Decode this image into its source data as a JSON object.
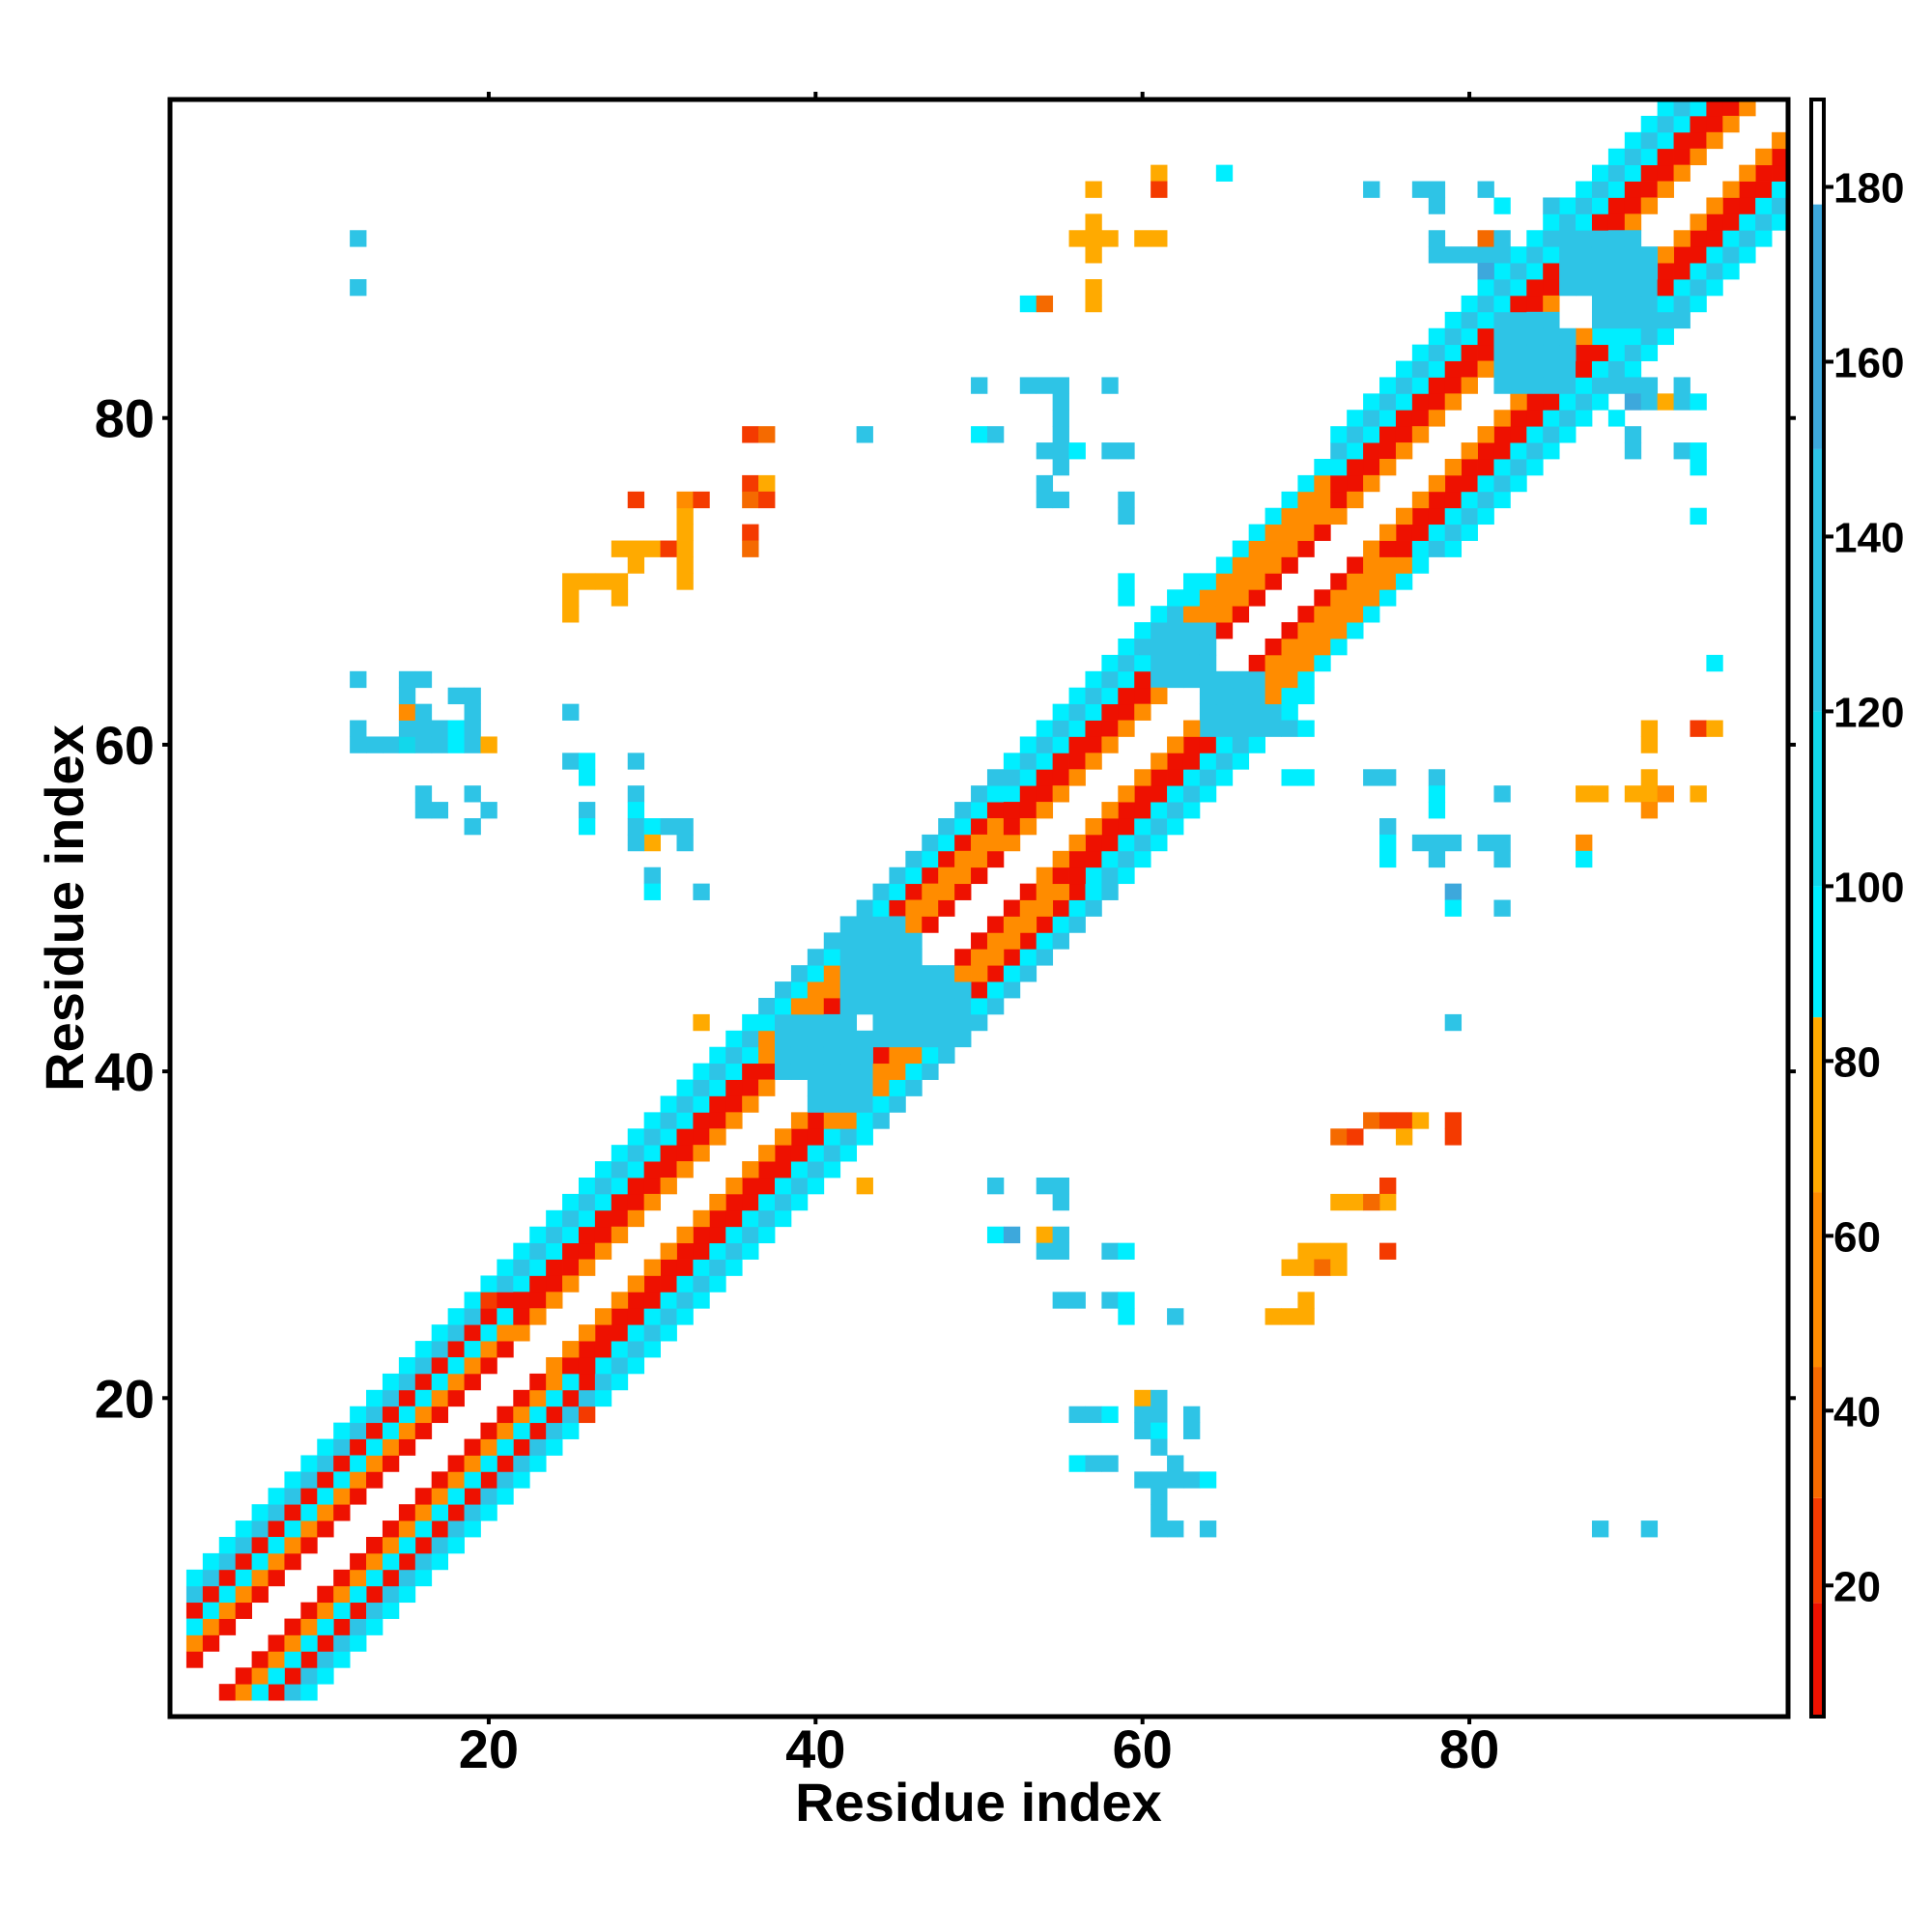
{
  "chart_data": {
    "type": "heatmap",
    "title": "",
    "xlabel": "Residue index",
    "ylabel": "Residue index",
    "xlim": [
      1,
      99
    ],
    "ylim": [
      1,
      99
    ],
    "x_ticks": [
      20,
      40,
      60,
      80
    ],
    "y_ticks": [
      20,
      40,
      60,
      80
    ],
    "colorbar": {
      "range": [
        5,
        190
      ],
      "ticks": [
        20,
        40,
        60,
        80,
        100,
        120,
        140,
        160,
        180
      ],
      "bands": [
        {
          "from": 5,
          "to": 18,
          "color": "#ee1100"
        },
        {
          "from": 18,
          "to": 30,
          "color": "#f43a00"
        },
        {
          "from": 30,
          "to": 45,
          "color": "#f56a00"
        },
        {
          "from": 45,
          "to": 65,
          "color": "#ff8c00"
        },
        {
          "from": 65,
          "to": 85,
          "color": "#ffaa00"
        },
        {
          "from": 85,
          "to": 100,
          "color": "#00eeff"
        },
        {
          "from": 100,
          "to": 120,
          "color": "#12d7eb"
        },
        {
          "from": 120,
          "to": 150,
          "color": "#2ec4e6"
        },
        {
          "from": 150,
          "to": 178,
          "color": "#3da8dc"
        },
        {
          "from": 178,
          "to": 190,
          "color": "#ffffff"
        }
      ]
    },
    "bands": [
      {
        "start": 2,
        "end": 22,
        "red_offsets": [
          2,
          5
        ],
        "orange_offsets": [
          3
        ],
        "cyan_offsets": [
          4,
          6,
          7
        ]
      },
      {
        "start": 22,
        "end": 38,
        "red_offsets": [
          3,
          4
        ],
        "orange_offsets": [
          2
        ],
        "cyan_offsets": [
          5,
          6,
          7
        ]
      },
      {
        "start": 37,
        "end": 44,
        "red_offsets": [
          3
        ],
        "orange_offsets": [
          2,
          4,
          5
        ],
        "cyan_offsets": [
          6,
          7
        ]
      },
      {
        "start": 44,
        "end": 52,
        "red_offsets": [
          2,
          5
        ],
        "orange_offsets": [
          3,
          4
        ],
        "cyan_offsets": [
          6,
          7
        ]
      },
      {
        "start": 52,
        "end": 63,
        "red_offsets": [
          3,
          4
        ],
        "orange_offsets": [
          2
        ],
        "cyan_offsets": [
          5,
          6,
          7
        ]
      },
      {
        "start": 63,
        "end": 72,
        "red_offsets": [
          2
        ],
        "orange_offsets": [
          3,
          4,
          5
        ],
        "cyan_offsets": [
          6
        ]
      },
      {
        "start": 72,
        "end": 85,
        "red_offsets": [
          3,
          4
        ],
        "orange_offsets": [
          2
        ],
        "cyan_offsets": [
          5,
          6,
          7
        ]
      },
      {
        "start": 85,
        "end": 98,
        "red_offsets": [
          3,
          4
        ],
        "orange_offsets": [
          2
        ],
        "cyan_offsets": [
          5,
          6,
          7
        ]
      }
    ],
    "blocks": [
      {
        "x": [
          42,
          46
        ],
        "y": [
          44,
          48
        ],
        "value": 140
      },
      {
        "x": [
          40,
          43
        ],
        "y": [
          38,
          42
        ],
        "value": 130
      },
      {
        "x": [
          47,
          49
        ],
        "y": [
          42,
          45
        ],
        "value": 140
      },
      {
        "x": [
          61,
          64
        ],
        "y": [
          64,
          67
        ],
        "value": 130
      },
      {
        "x": [
          82,
          86
        ],
        "y": [
          82,
          85
        ],
        "value": 130
      },
      {
        "x": [
          86,
          90
        ],
        "y": [
          88,
          91
        ],
        "value": 125
      }
    ],
    "cells": [
      [
        12,
        60,
        125
      ],
      [
        13,
        60,
        125
      ],
      [
        14,
        60,
        125
      ],
      [
        15,
        60,
        110
      ],
      [
        16,
        60,
        125
      ],
      [
        17,
        60,
        125
      ],
      [
        18,
        60,
        95
      ],
      [
        19,
        60,
        125
      ],
      [
        20,
        60,
        70
      ],
      [
        12,
        61,
        125
      ],
      [
        15,
        61,
        125
      ],
      [
        16,
        61,
        125
      ],
      [
        17,
        61,
        125
      ],
      [
        18,
        61,
        95
      ],
      [
        19,
        61,
        125
      ],
      [
        15,
        62,
        60
      ],
      [
        16,
        62,
        125
      ],
      [
        15,
        63,
        125
      ],
      [
        18,
        63,
        125
      ],
      [
        19,
        63,
        125
      ],
      [
        19,
        62,
        125
      ],
      [
        15,
        64,
        125
      ],
      [
        16,
        64,
        125
      ],
      [
        12,
        64,
        140
      ],
      [
        16,
        57,
        125
      ],
      [
        17,
        56,
        125
      ],
      [
        16,
        56,
        125
      ],
      [
        19,
        57,
        125
      ],
      [
        20,
        56,
        125
      ],
      [
        19,
        55,
        125
      ],
      [
        12,
        88,
        130
      ],
      [
        12,
        91,
        140
      ],
      [
        25,
        62,
        140
      ],
      [
        25,
        59,
        125
      ],
      [
        26,
        59,
        95
      ],
      [
        26,
        58,
        95
      ],
      [
        29,
        59,
        125
      ],
      [
        29,
        57,
        125
      ],
      [
        26,
        56,
        125
      ],
      [
        26,
        55,
        95
      ],
      [
        29,
        56,
        95
      ],
      [
        29,
        55,
        125
      ],
      [
        30,
        55,
        95
      ],
      [
        30,
        54,
        70
      ],
      [
        29,
        54,
        140
      ],
      [
        31,
        55,
        125
      ],
      [
        32,
        55,
        125
      ],
      [
        32,
        54,
        125
      ],
      [
        30,
        52,
        140
      ],
      [
        30,
        51,
        95
      ],
      [
        33,
        51,
        125
      ],
      [
        25,
        68,
        70
      ],
      [
        25,
        69,
        70
      ],
      [
        25,
        70,
        70
      ],
      [
        26,
        70,
        70
      ],
      [
        27,
        70,
        70
      ],
      [
        28,
        70,
        70
      ],
      [
        28,
        69,
        70
      ],
      [
        29,
        71,
        70
      ],
      [
        29,
        72,
        70
      ],
      [
        30,
        72,
        70
      ],
      [
        28,
        72,
        70
      ],
      [
        29,
        75,
        18
      ],
      [
        32,
        73,
        70
      ],
      [
        31,
        72,
        18
      ],
      [
        32,
        72,
        70
      ],
      [
        32,
        70,
        70
      ],
      [
        32,
        71,
        70
      ],
      [
        32,
        74,
        70
      ],
      [
        32,
        75,
        55
      ],
      [
        33,
        75,
        18
      ],
      [
        36,
        79,
        18
      ],
      [
        37,
        79,
        40
      ],
      [
        36,
        76,
        18
      ],
      [
        37,
        76,
        70
      ],
      [
        36,
        75,
        40
      ],
      [
        37,
        75,
        18
      ],
      [
        36,
        73,
        18
      ],
      [
        36,
        72,
        40
      ],
      [
        43,
        79,
        130
      ],
      [
        50,
        82,
        130
      ],
      [
        50,
        79,
        95
      ],
      [
        51,
        79,
        130
      ],
      [
        53,
        82,
        130
      ],
      [
        54,
        82,
        130
      ],
      [
        55,
        82,
        130
      ],
      [
        58,
        82,
        140
      ],
      [
        54,
        78,
        130
      ],
      [
        55,
        78,
        130
      ],
      [
        55,
        77,
        130
      ],
      [
        56,
        78,
        95
      ],
      [
        55,
        79,
        125
      ],
      [
        55,
        80,
        130
      ],
      [
        55,
        81,
        125
      ],
      [
        54,
        76,
        125
      ],
      [
        58,
        78,
        130
      ],
      [
        59,
        78,
        130
      ],
      [
        54,
        75,
        140
      ],
      [
        55,
        75,
        140
      ],
      [
        59,
        75,
        125
      ],
      [
        59,
        74,
        125
      ],
      [
        59,
        70,
        95
      ],
      [
        59,
        69,
        95
      ],
      [
        53,
        87,
        95
      ],
      [
        54,
        87,
        40
      ],
      [
        57,
        87,
        70
      ],
      [
        57,
        88,
        70
      ],
      [
        56,
        91,
        70
      ],
      [
        57,
        91,
        70
      ],
      [
        58,
        91,
        70
      ],
      [
        57,
        92,
        70
      ],
      [
        57,
        90,
        70
      ],
      [
        57,
        94,
        70
      ],
      [
        60,
        91,
        70
      ],
      [
        61,
        91,
        70
      ],
      [
        61,
        95,
        70
      ],
      [
        61,
        94,
        18
      ],
      [
        65,
        95,
        95
      ],
      [
        74,
        94,
        140
      ],
      [
        77,
        94,
        130
      ],
      [
        78,
        94,
        130
      ],
      [
        78,
        93,
        130
      ],
      [
        81,
        94,
        130
      ],
      [
        82,
        93,
        95
      ],
      [
        85,
        93,
        130
      ],
      [
        78,
        91,
        130
      ],
      [
        78,
        90,
        130
      ],
      [
        79,
        90,
        130
      ],
      [
        80,
        90,
        130
      ],
      [
        81,
        90,
        130
      ],
      [
        81,
        89,
        150
      ],
      [
        82,
        90,
        130
      ],
      [
        81,
        91,
        40
      ],
      [
        82,
        91,
        130
      ],
      [
        83,
        90,
        95
      ],
      [
        88,
        85,
        95
      ],
      [
        89,
        85,
        95
      ],
      [
        89,
        82,
        130
      ],
      [
        90,
        82,
        130
      ],
      [
        90,
        81,
        150
      ],
      [
        91,
        81,
        130
      ],
      [
        91,
        82,
        130
      ],
      [
        92,
        81,
        70
      ],
      [
        89,
        80,
        95
      ],
      [
        90,
        79,
        130
      ],
      [
        90,
        78,
        130
      ],
      [
        93,
        82,
        130
      ],
      [
        93,
        81,
        130
      ],
      [
        94,
        81,
        95
      ],
      [
        93,
        78,
        130
      ],
      [
        94,
        78,
        95
      ],
      [
        94,
        77,
        95
      ],
      [
        94,
        74,
        95
      ],
      [
        93,
        86,
        130
      ],
      [
        68,
        61,
        130
      ],
      [
        69,
        61,
        130
      ],
      [
        70,
        61,
        95
      ],
      [
        69,
        58,
        95
      ],
      [
        70,
        58,
        95
      ],
      [
        74,
        58,
        125
      ],
      [
        75,
        58,
        130
      ],
      [
        78,
        58,
        130
      ],
      [
        78,
        57,
        95
      ],
      [
        82,
        57,
        130
      ],
      [
        78,
        56,
        95
      ],
      [
        75,
        55,
        125
      ],
      [
        75,
        54,
        95
      ],
      [
        77,
        54,
        125
      ],
      [
        78,
        54,
        125
      ],
      [
        79,
        54,
        130
      ],
      [
        78,
        53,
        130
      ],
      [
        81,
        54,
        125
      ],
      [
        82,
        54,
        130
      ],
      [
        82,
        53,
        130
      ],
      [
        75,
        53,
        95
      ],
      [
        79,
        51,
        150
      ],
      [
        79,
        50,
        95
      ],
      [
        82,
        50,
        130
      ],
      [
        79,
        43,
        125
      ],
      [
        95,
        65,
        95
      ],
      [
        87,
        57,
        70
      ],
      [
        88,
        57,
        70
      ],
      [
        90,
        57,
        70
      ],
      [
        91,
        57,
        70
      ],
      [
        92,
        57,
        55
      ],
      [
        91,
        58,
        70
      ],
      [
        91,
        56,
        55
      ],
      [
        91,
        60,
        70
      ],
      [
        91,
        61,
        70
      ],
      [
        94,
        57,
        70
      ],
      [
        94,
        61,
        18
      ],
      [
        95,
        61,
        70
      ],
      [
        87,
        54,
        55
      ],
      [
        87,
        53,
        95
      ],
      [
        74,
        37,
        40
      ],
      [
        75,
        37,
        18
      ],
      [
        76,
        37,
        18
      ],
      [
        77,
        37,
        70
      ],
      [
        72,
        36,
        40
      ],
      [
        73,
        36,
        18
      ],
      [
        76,
        36,
        70
      ],
      [
        79,
        36,
        18
      ],
      [
        79,
        37,
        18
      ],
      [
        75,
        33,
        18
      ],
      [
        75,
        32,
        70
      ],
      [
        72,
        32,
        70
      ],
      [
        73,
        32,
        70
      ],
      [
        74,
        32,
        40
      ],
      [
        70,
        29,
        70
      ],
      [
        71,
        29,
        70
      ],
      [
        72,
        29,
        70
      ],
      [
        69,
        28,
        70
      ],
      [
        70,
        28,
        70
      ],
      [
        71,
        28,
        40
      ],
      [
        72,
        28,
        70
      ],
      [
        75,
        29,
        18
      ],
      [
        68,
        25,
        70
      ],
      [
        69,
        25,
        70
      ],
      [
        70,
        25,
        70
      ],
      [
        70,
        26,
        70
      ],
      [
        51,
        33,
        130
      ],
      [
        54,
        33,
        130
      ],
      [
        55,
        33,
        125
      ],
      [
        55,
        32,
        125
      ],
      [
        51,
        30,
        95
      ],
      [
        52,
        30,
        150
      ],
      [
        54,
        30,
        70
      ],
      [
        55,
        30,
        125
      ],
      [
        54,
        29,
        125
      ],
      [
        55,
        29,
        125
      ],
      [
        58,
        29,
        125
      ],
      [
        59,
        29,
        95
      ],
      [
        55,
        26,
        125
      ],
      [
        56,
        26,
        140
      ],
      [
        58,
        26,
        125
      ],
      [
        59,
        26,
        95
      ],
      [
        59,
        25,
        95
      ],
      [
        62,
        25,
        140
      ],
      [
        43,
        33,
        70
      ],
      [
        33,
        43,
        70
      ],
      [
        26,
        19,
        18
      ],
      [
        20,
        26,
        18
      ],
      [
        56,
        19,
        125
      ],
      [
        57,
        19,
        125
      ],
      [
        58,
        19,
        95
      ],
      [
        56,
        16,
        95
      ],
      [
        57,
        16,
        125
      ],
      [
        58,
        16,
        125
      ],
      [
        60,
        20,
        70
      ],
      [
        61,
        20,
        125
      ],
      [
        60,
        19,
        140
      ],
      [
        61,
        19,
        125
      ],
      [
        63,
        19,
        125
      ],
      [
        63,
        18,
        125
      ],
      [
        60,
        18,
        125
      ],
      [
        61,
        18,
        95
      ],
      [
        61,
        17,
        125
      ],
      [
        62,
        16,
        125
      ],
      [
        62,
        15,
        125
      ],
      [
        63,
        15,
        140
      ],
      [
        60,
        15,
        140
      ],
      [
        61,
        15,
        125
      ],
      [
        64,
        15,
        95
      ],
      [
        61,
        14,
        130
      ],
      [
        61,
        13,
        125
      ],
      [
        62,
        12,
        125
      ],
      [
        61,
        12,
        125
      ],
      [
        64,
        12,
        130
      ],
      [
        88,
        12,
        125
      ],
      [
        91,
        12,
        125
      ]
    ]
  }
}
